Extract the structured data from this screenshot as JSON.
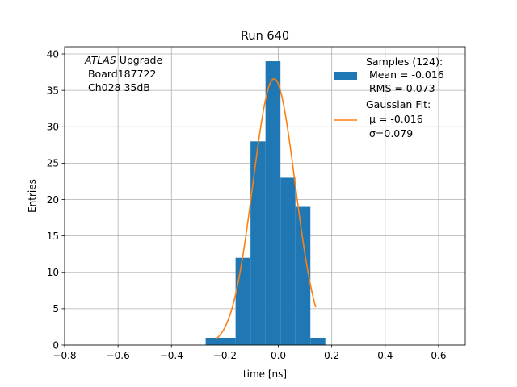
{
  "chart_data": {
    "type": "bar",
    "title": "Run 640",
    "xlabel": "time [ns]",
    "ylabel": "Entries",
    "xlim": [
      -0.8,
      0.7
    ],
    "ylim": [
      0,
      41
    ],
    "xticks": [
      -0.8,
      -0.6,
      -0.4,
      -0.2,
      0.0,
      0.2,
      0.4,
      0.6
    ],
    "xtick_labels": [
      "−0.8",
      "−0.6",
      "−0.4",
      "−0.2",
      "0.0",
      "0.2",
      "0.4",
      "0.6"
    ],
    "yticks": [
      0,
      5,
      10,
      15,
      20,
      25,
      30,
      35,
      40
    ],
    "ytick_labels": [
      "0",
      "5",
      "10",
      "15",
      "20",
      "25",
      "30",
      "35",
      "40"
    ],
    "grid": true,
    "legend_position": "top-right",
    "histogram": {
      "name": "Samples (124):",
      "color": "#1f77b4",
      "bin_edges": [
        -0.272,
        -0.216,
        -0.16,
        -0.104,
        -0.048,
        0.008,
        0.064,
        0.12,
        0.176
      ],
      "counts": [
        1,
        1,
        12,
        28,
        39,
        23,
        19,
        1
      ]
    },
    "fit": {
      "name": "Gaussian Fit:",
      "color": "#ff7f0e",
      "mu": -0.016,
      "sigma": 0.079,
      "amplitude": 36.6,
      "x_range": [
        -0.23,
        0.14
      ]
    },
    "legend": {
      "samples_title": "Samples (124):",
      "samples_mean": " Mean = -0.016",
      "samples_rms": " RMS = 0.073",
      "fit_title": "Gaussian Fit:",
      "fit_mu": " μ = -0.016",
      "fit_sigma": " σ=0.079"
    },
    "annotation": {
      "line1_italic": "ATLAS",
      "line1_rest": " Upgrade",
      "line2": " Board187722",
      "line3": " Ch028 35dB"
    }
  }
}
